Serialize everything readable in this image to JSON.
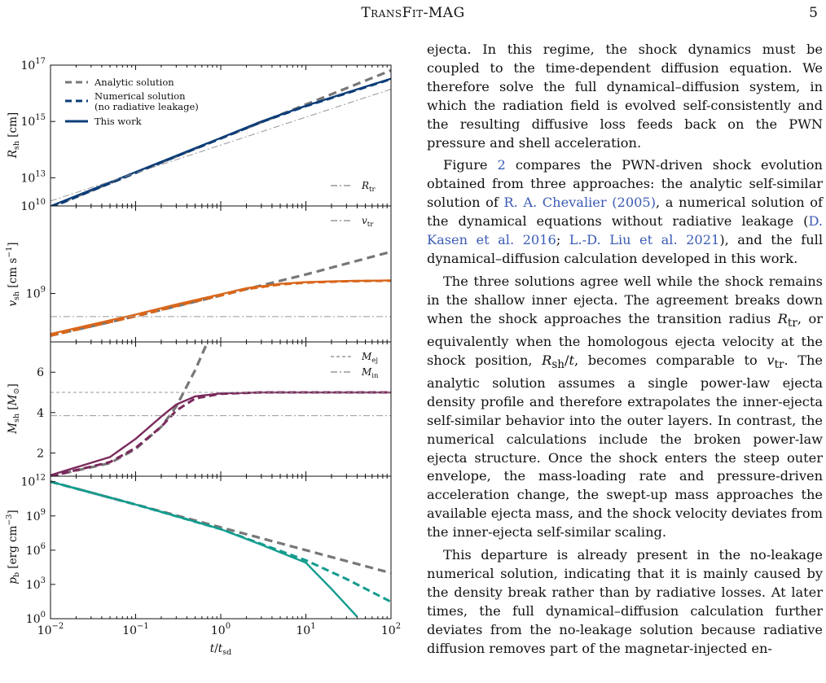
{
  "header": {
    "title": "TransFit-MAG",
    "page": "5"
  },
  "figure": {
    "x_axis_label": "t/t",
    "x_axis_label_sub": "sd",
    "x_ticks": [
      {
        "base": "10",
        "exp": "−2"
      },
      {
        "base": "10",
        "exp": "−1"
      },
      {
        "base": "10",
        "exp": "0"
      },
      {
        "base": "10",
        "exp": "1"
      },
      {
        "base": "10",
        "exp": "2"
      }
    ],
    "colors": {
      "analytic": "#777777",
      "r": "#0c3d78",
      "v": "#d9661a",
      "m": "#7a2a5c",
      "p": "#139c8e",
      "ref": "#999999"
    },
    "panels": [
      {
        "id": "R",
        "ylabel": "R_sh [cm]",
        "yscale": "log",
        "ylim": [
          1000000000000.0,
          1e+17
        ],
        "y_ticks": [
          {
            "base": "10",
            "exp": "13"
          },
          {
            "base": "10",
            "exp": "15"
          },
          {
            "base": "10",
            "exp": "17"
          }
        ],
        "legend": [
          "Analytic solution",
          "Numerical solution",
          "(no radiative leakage)",
          "This work"
        ],
        "ref_label": "R_tr"
      },
      {
        "id": "v",
        "ylabel": "v_sh [cm s^-1]",
        "yscale": "log",
        "ylim": [
          280000000.0,
          10000000000.0
        ],
        "y_ticks": [
          {
            "base": "10",
            "exp": "9"
          },
          {
            "base": "10",
            "exp": "10"
          }
        ],
        "ref_label": "v_tr"
      },
      {
        "id": "M",
        "ylabel": "M_sh [M_sun]",
        "yscale": "linear",
        "ylim": [
          0.85,
          7.5
        ],
        "y_ticks": [
          "2",
          "4",
          "6"
        ],
        "ref_labels": [
          "M_ej",
          "M_in"
        ]
      },
      {
        "id": "p",
        "ylabel": "p_b [erg cm^-3]",
        "yscale": "log",
        "ylim": [
          1,
          3000000000000.0
        ],
        "y_ticks": [
          {
            "base": "10",
            "exp": "0"
          },
          {
            "base": "10",
            "exp": "3"
          },
          {
            "base": "10",
            "exp": "6"
          },
          {
            "base": "10",
            "exp": "9"
          },
          {
            "base": "10",
            "exp": "12"
          }
        ]
      }
    ]
  },
  "chart_data": [
    {
      "type": "line",
      "xlabel": "t/t_sd",
      "xscale": "log",
      "xlim": [
        0.01,
        100
      ],
      "ylabel": "R_sh [cm]",
      "yscale": "log",
      "ylim": [
        1000000000000.0,
        1e+17
      ],
      "series": [
        {
          "name": "Analytic solution",
          "x": [
            0.01,
            0.1,
            1,
            10,
            100
          ],
          "y": [
            930000000000.0,
            15000000000000.0,
            250000000000000.0,
            4000000000000000.0,
            6.5e+16
          ]
        },
        {
          "name": "Numerical solution (no radiative leakage)",
          "x": [
            0.01,
            0.1,
            1,
            3,
            10,
            30,
            100
          ],
          "y": [
            880000000000.0,
            15000000000000.0,
            250000000000000.0,
            950000000000000.0,
            3500000000000000.0,
            1e+16,
            3.2e+16
          ]
        },
        {
          "name": "This work",
          "x": [
            0.01,
            0.1,
            1,
            3,
            10,
            30,
            100
          ],
          "y": [
            980000000000.0,
            16000000000000.0,
            260000000000000.0,
            1000000000000000.0,
            3600000000000000.0,
            1.05e+16,
            3.3e+16
          ]
        },
        {
          "name": "R_tr",
          "x": [
            0.01,
            100
          ],
          "y": [
            1500000000000.0,
            1.4e+16
          ]
        }
      ]
    },
    {
      "type": "line",
      "xlabel": "t/t_sd",
      "xscale": "log",
      "xlim": [
        0.01,
        100
      ],
      "ylabel": "v_sh [cm s^-1]",
      "yscale": "log",
      "ylim": [
        280000000.0,
        10000000000.0
      ],
      "series": [
        {
          "name": "Analytic solution",
          "x": [
            0.01,
            0.1,
            1,
            10,
            100
          ],
          "y": [
            330000000.0,
            550000000.0,
            950000000.0,
            1650000000.0,
            3000000000.0
          ]
        },
        {
          "name": "Numerical solution (no radiative leakage)",
          "x": [
            0.01,
            0.1,
            0.3,
            1,
            2,
            5,
            10,
            30,
            100
          ],
          "y": [
            330000000.0,
            550000000.0,
            720000000.0,
            950000000.0,
            1120000000.0,
            1270000000.0,
            1330000000.0,
            1380000000.0,
            1400000000.0
          ]
        },
        {
          "name": "This work",
          "x": [
            0.01,
            0.1,
            0.3,
            1,
            2,
            5,
            10,
            30,
            100
          ],
          "y": [
            345000000.0,
            575000000.0,
            750000000.0,
            980000000.0,
            1150000000.0,
            1290000000.0,
            1350000000.0,
            1390000000.0,
            1410000000.0
          ]
        },
        {
          "name": "v_tr",
          "x": [
            0.01,
            100
          ],
          "y": [
            545000000.0,
            545000000.0
          ]
        }
      ]
    },
    {
      "type": "line",
      "xlabel": "t/t_sd",
      "xscale": "log",
      "xlim": [
        0.01,
        100
      ],
      "ylabel": "M_sh [M_sun]",
      "yscale": "linear",
      "ylim": [
        0.85,
        7.5
      ],
      "series": [
        {
          "name": "Analytic solution",
          "x": [
            0.01,
            0.05,
            0.1,
            0.2,
            0.3,
            0.5,
            0.7
          ],
          "y": [
            0.85,
            1.5,
            2.2,
            3.3,
            4.3,
            6.1,
            7.5
          ]
        },
        {
          "name": "Numerical solution (no radiative leakage)",
          "x": [
            0.01,
            0.05,
            0.1,
            0.2,
            0.3,
            0.5,
            1,
            3,
            100
          ],
          "y": [
            0.85,
            1.55,
            2.25,
            3.3,
            4.1,
            4.7,
            4.93,
            5.0,
            5.0
          ]
        },
        {
          "name": "This work",
          "x": [
            0.01,
            0.05,
            0.1,
            0.2,
            0.3,
            0.5,
            1,
            3,
            100
          ],
          "y": [
            0.9,
            1.8,
            2.7,
            3.8,
            4.4,
            4.8,
            4.95,
            5.0,
            5.0
          ]
        },
        {
          "name": "M_ej",
          "x": [
            0.01,
            100
          ],
          "y": [
            5.0,
            5.0
          ]
        },
        {
          "name": "M_in",
          "x": [
            0.01,
            100
          ],
          "y": [
            3.85,
            3.85
          ]
        }
      ]
    },
    {
      "type": "line",
      "xlabel": "t/t_sd",
      "xscale": "log",
      "xlim": [
        0.01,
        100
      ],
      "ylabel": "p_b [erg cm^-3]",
      "yscale": "log",
      "ylim": [
        1,
        3000000000000.0
      ],
      "series": [
        {
          "name": "Analytic solution",
          "x": [
            0.01,
            0.1,
            1,
            10,
            100
          ],
          "y": [
            1000000000000.0,
            10000000000.0,
            100000000.0,
            1000000.0,
            10000.0
          ]
        },
        {
          "name": "Numerical solution (no radiative leakage)",
          "x": [
            0.01,
            0.1,
            1,
            3,
            10,
            30,
            100
          ],
          "y": [
            1000000000000.0,
            10000000000.0,
            70000000.0,
            3500000.0,
            130000.0,
            3000.0,
            30.0
          ]
        },
        {
          "name": "This work",
          "x": [
            0.01,
            0.1,
            1,
            3,
            10,
            20,
            40
          ],
          "y": [
            1000000000000.0,
            10000000000.0,
            70000000.0,
            3000000.0,
            80000.0,
            400.0,
            1.5
          ]
        }
      ]
    }
  ],
  "body": {
    "paragraphs": [
      "ejecta. In this regime, the shock dynamics must be coupled to the time-dependent diffusion equation. We therefore solve the full dynamical–diffusion system, in which the radiation field is evolved self-consistently and the resulting diffusive loss feeds back on the PWN pressure and shell acceleration.",
      "Figure 2 compares the PWN-driven shock evolution obtained from three approaches: the analytic self-similar solution of R. A. Chevalier (2005), a numerical solution of the dynamical equations without radiative leakage (D. Kasen et al. 2016; L.-D. Liu et al. 2021), and the full dynamical–diffusion calculation developed in this work.",
      "The three solutions agree well while the shock remains in the shallow inner ejecta. The agreement breaks down when the shock approaches the transition radius R_tr, or equivalently when the homologous ejecta velocity at the shock position, R_sh/t, becomes comparable to v_tr. The analytic solution assumes a single power-law ejecta density profile and therefore extrapolates the inner-ejecta self-similar behavior into the outer layers. In contrast, the numerical calculations include the broken power-law ejecta structure. Once the shock enters the steep outer envelope, the mass-loading rate and pressure-driven acceleration change, the swept-up mass approaches the available ejecta mass, and the shock velocity deviates from the inner-ejecta self-similar scaling.",
      "This departure is already present in the no-leakage numerical solution, indicating that it is mainly caused by the density break rather than by radiative losses. At later times, the full dynamical–diffusion calculation further deviates from the no-leakage solution because radiative diffusion removes part of the magnetar-injected en-"
    ]
  }
}
